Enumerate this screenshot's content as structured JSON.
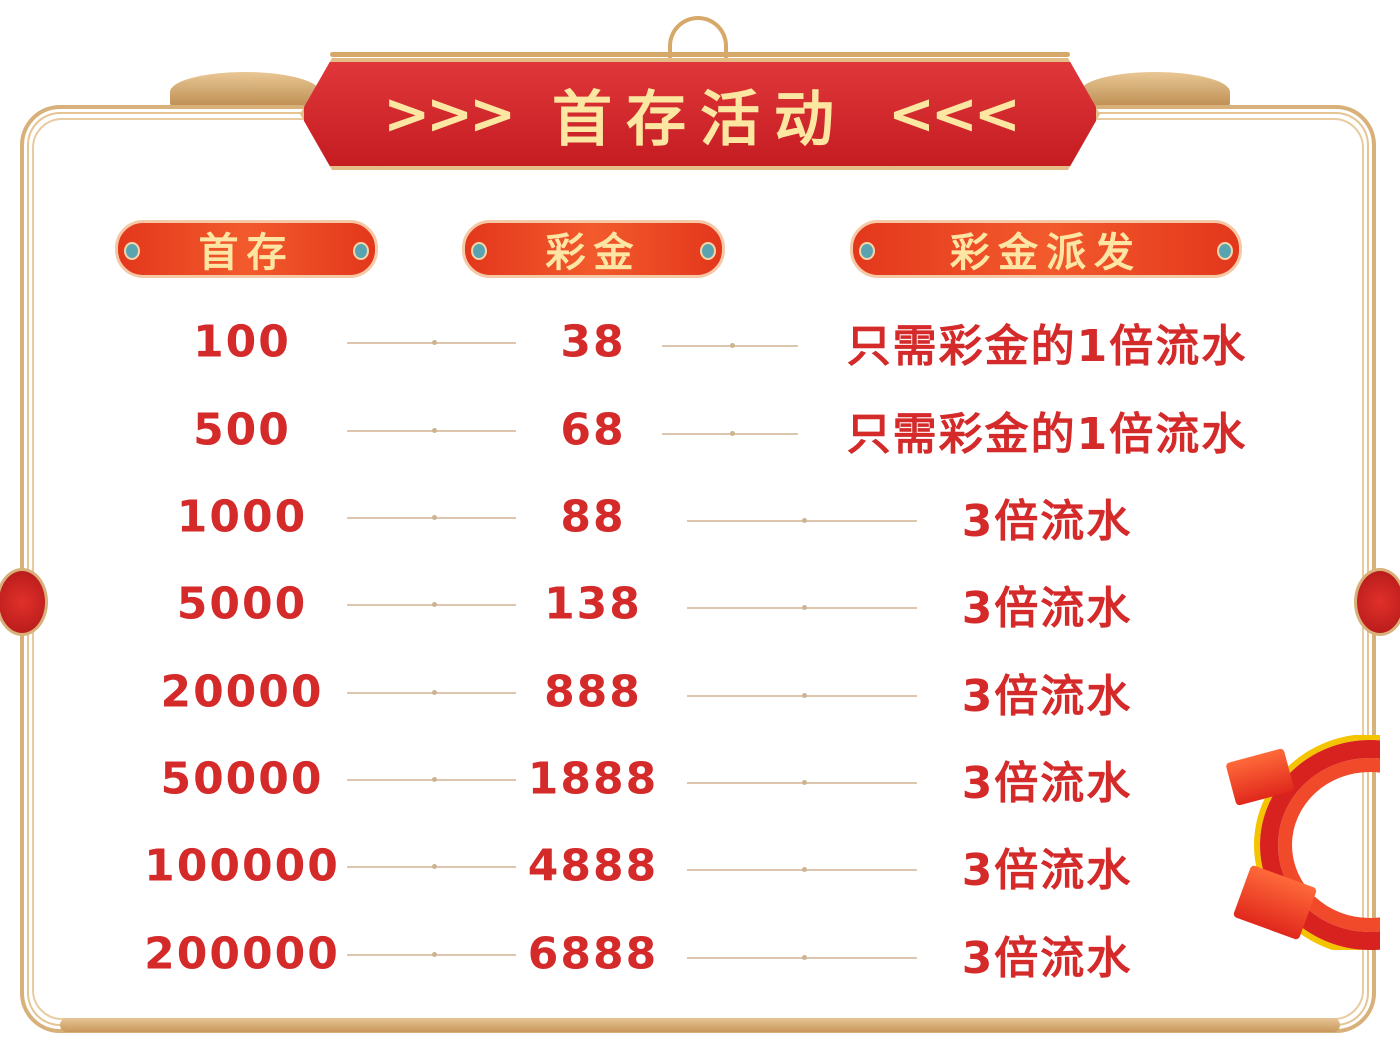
{
  "title": {
    "left_arrows": ">>>",
    "text": "首存活动",
    "right_arrows": "<<<"
  },
  "headers": [
    "首存",
    "彩金",
    "彩金派发"
  ],
  "rows": [
    {
      "deposit": "100",
      "bonus": "38",
      "payout": "只需彩金的1倍流水"
    },
    {
      "deposit": "500",
      "bonus": "68",
      "payout": "只需彩金的1倍流水"
    },
    {
      "deposit": "1000",
      "bonus": "88",
      "payout": "3倍流水"
    },
    {
      "deposit": "5000",
      "bonus": "138",
      "payout": "3倍流水"
    },
    {
      "deposit": "20000",
      "bonus": "888",
      "payout": "3倍流水"
    },
    {
      "deposit": "50000",
      "bonus": "1888",
      "payout": "3倍流水"
    },
    {
      "deposit": "100000",
      "bonus": "4888",
      "payout": "3倍流水"
    },
    {
      "deposit": "200000",
      "bonus": "6888",
      "payout": "3倍流水"
    }
  ],
  "colors": {
    "text_red": "#d42a2a",
    "title_gold": "#fbe7a1",
    "frame_gold": "#d8b07a",
    "plate_red": "#c41c21"
  },
  "icons": {
    "decoration": "red-envelope-chip-decoration"
  }
}
